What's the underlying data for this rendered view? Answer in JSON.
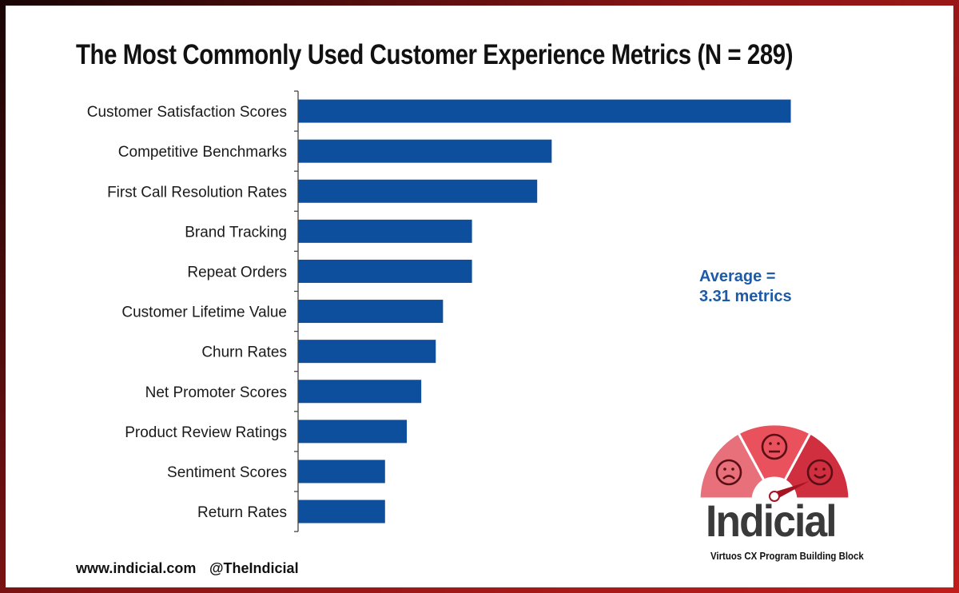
{
  "chart_data": {
    "type": "bar",
    "orientation": "horizontal",
    "title": "The Most Commonly Used Customer Experience Metrics (N = 289)",
    "categories": [
      "Customer Satisfaction Scores",
      "Competitive Benchmarks",
      "First Call Resolution Rates",
      "Brand Tracking",
      "Repeat Orders",
      "Customer Lifetime Value",
      "Churn Rates",
      "Net Promoter Scores",
      "Product Review Ratings",
      "Sentiment Scores",
      "Return Rates"
    ],
    "values": [
      68,
      35,
      33,
      24,
      24,
      20,
      19,
      17,
      15,
      12,
      12
    ],
    "xlim": [
      0,
      75
    ],
    "value_unit": "% of respondents (estimated, no axis shown)",
    "xlabel": "",
    "ylabel": "",
    "grid": false,
    "bar_color": "#0d4f9c",
    "annotation": {
      "line1": "Average =",
      "line2": "3.31 metrics"
    }
  },
  "footer": {
    "website": "www.indicial.com",
    "handle": "@TheIndicial"
  },
  "logo": {
    "name": "Indicial",
    "tagline": "Virtuos CX Program Building Block"
  },
  "colors": {
    "frame": "#8a1515",
    "annotation": "#1d5aa8",
    "gauge": "#e05a64"
  }
}
